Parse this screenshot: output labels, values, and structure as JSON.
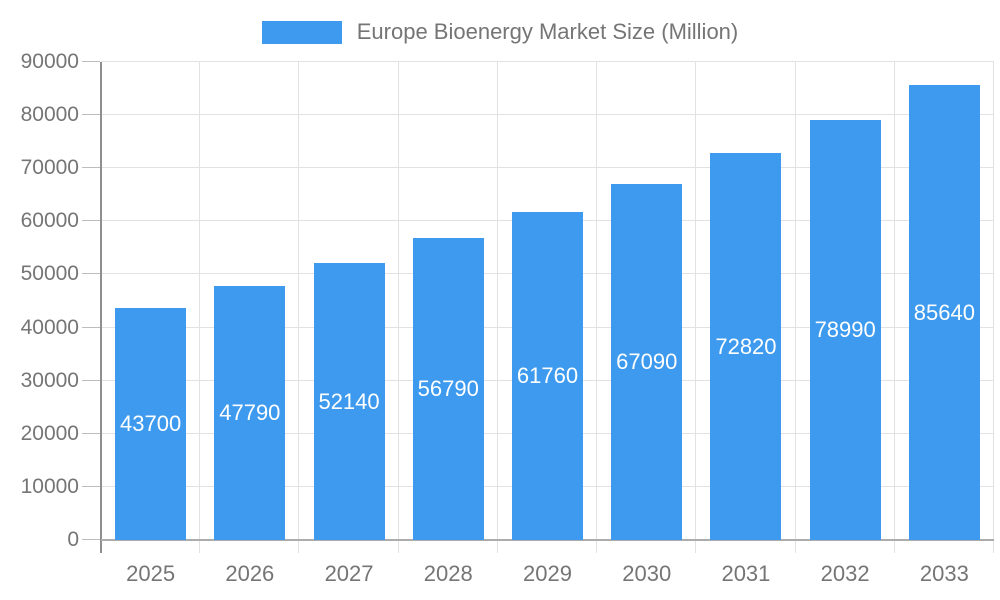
{
  "chart_data": {
    "type": "bar",
    "title": "Europe Bioenergy Market Size (Million)",
    "categories": [
      "2025",
      "2026",
      "2027",
      "2028",
      "2029",
      "2030",
      "2031",
      "2032",
      "2033"
    ],
    "values": [
      43700,
      47790,
      52140,
      56790,
      61760,
      67090,
      72820,
      78990,
      85640
    ],
    "series": [
      {
        "name": "Europe Bioenergy Market Size (Million)",
        "values": [
          43700,
          47790,
          52140,
          56790,
          61760,
          67090,
          72820,
          78990,
          85640
        ]
      }
    ],
    "xlabel": "",
    "ylabel": "",
    "ylim": [
      0,
      90000
    ],
    "yticks": [
      0,
      10000,
      20000,
      30000,
      40000,
      50000,
      60000,
      70000,
      80000,
      90000
    ],
    "grid": true,
    "data_labels": "inside-center",
    "legend": {
      "position": "top",
      "label": "Europe Bioenergy Market Size (Million)"
    },
    "colors": {
      "bar": "#3D9AEE",
      "bar_label": "#FFFFFF",
      "axis_text": "#757575",
      "gridline": "#E2E2E2",
      "y_axis_line": "#8F8F8F",
      "zero_line": "#ACACAC",
      "tick": "#BDBDBD"
    }
  }
}
